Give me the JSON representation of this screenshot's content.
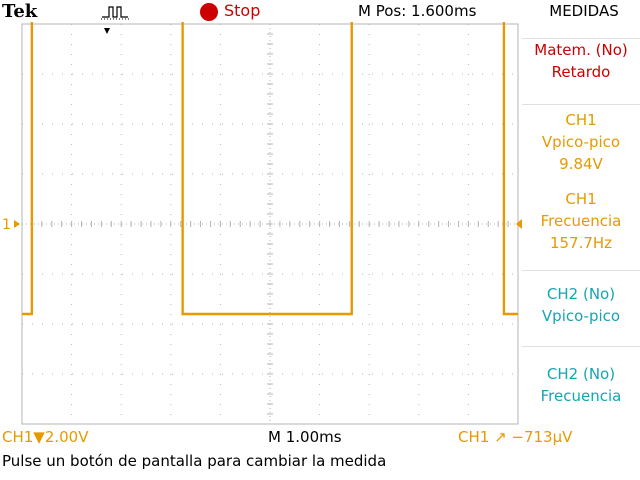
{
  "header": {
    "brand": "Tek",
    "trigger_icon": "pulse-trigger-icon",
    "status": "Stop",
    "status_color": "#cc0000",
    "position": "M Pos: 1.600ms",
    "menu_title": "MEDIDAS"
  },
  "channel_marker": "1",
  "measurements": [
    {
      "line1": "Matem. (No)",
      "line2": "Retardo",
      "line3": "",
      "color": "red"
    },
    {
      "line1": "CH1",
      "line2": "Vpico-pico",
      "line3": "9.84V",
      "color": "amber"
    },
    {
      "line1": "CH1",
      "line2": "Frecuencia",
      "line3": "157.7Hz",
      "color": "amber"
    },
    {
      "line1": "CH2 (No)",
      "line2": "Vpico-pico",
      "line3": "",
      "color": "cyan"
    },
    {
      "line1": "CH2 (No)",
      "line2": "Frecuencia",
      "line3": "",
      "color": "cyan"
    }
  ],
  "footer": {
    "channel_scale": "CH1▼2.00V",
    "timebase": "M 1.00ms",
    "trigger": "CH1 ↗ −713μV",
    "message": "Pulse un botón de pantalla para cambiar la medida"
  },
  "colors": {
    "ch1": "#e69a00",
    "ch2": "#16a6b0",
    "grid": "#b4b4b4"
  },
  "waveform": {
    "type": "square",
    "high_level_div": 4.1,
    "low_level_div": -1.8,
    "segments": [
      {
        "t_start_div": 0.0,
        "t_end_div": 0.35,
        "level": "low"
      },
      {
        "t_start_div": 0.35,
        "t_end_div": 5.7,
        "level": "high"
      },
      {
        "t_start_div": 5.7,
        "t_end_div": 11.7,
        "level": "low"
      },
      {
        "t_start_div": 11.7,
        "t_end_div": 17.1,
        "level": "high"
      },
      {
        "t_start_div": 17.1,
        "t_end_div": 17.6,
        "level": "low"
      }
    ]
  }
}
